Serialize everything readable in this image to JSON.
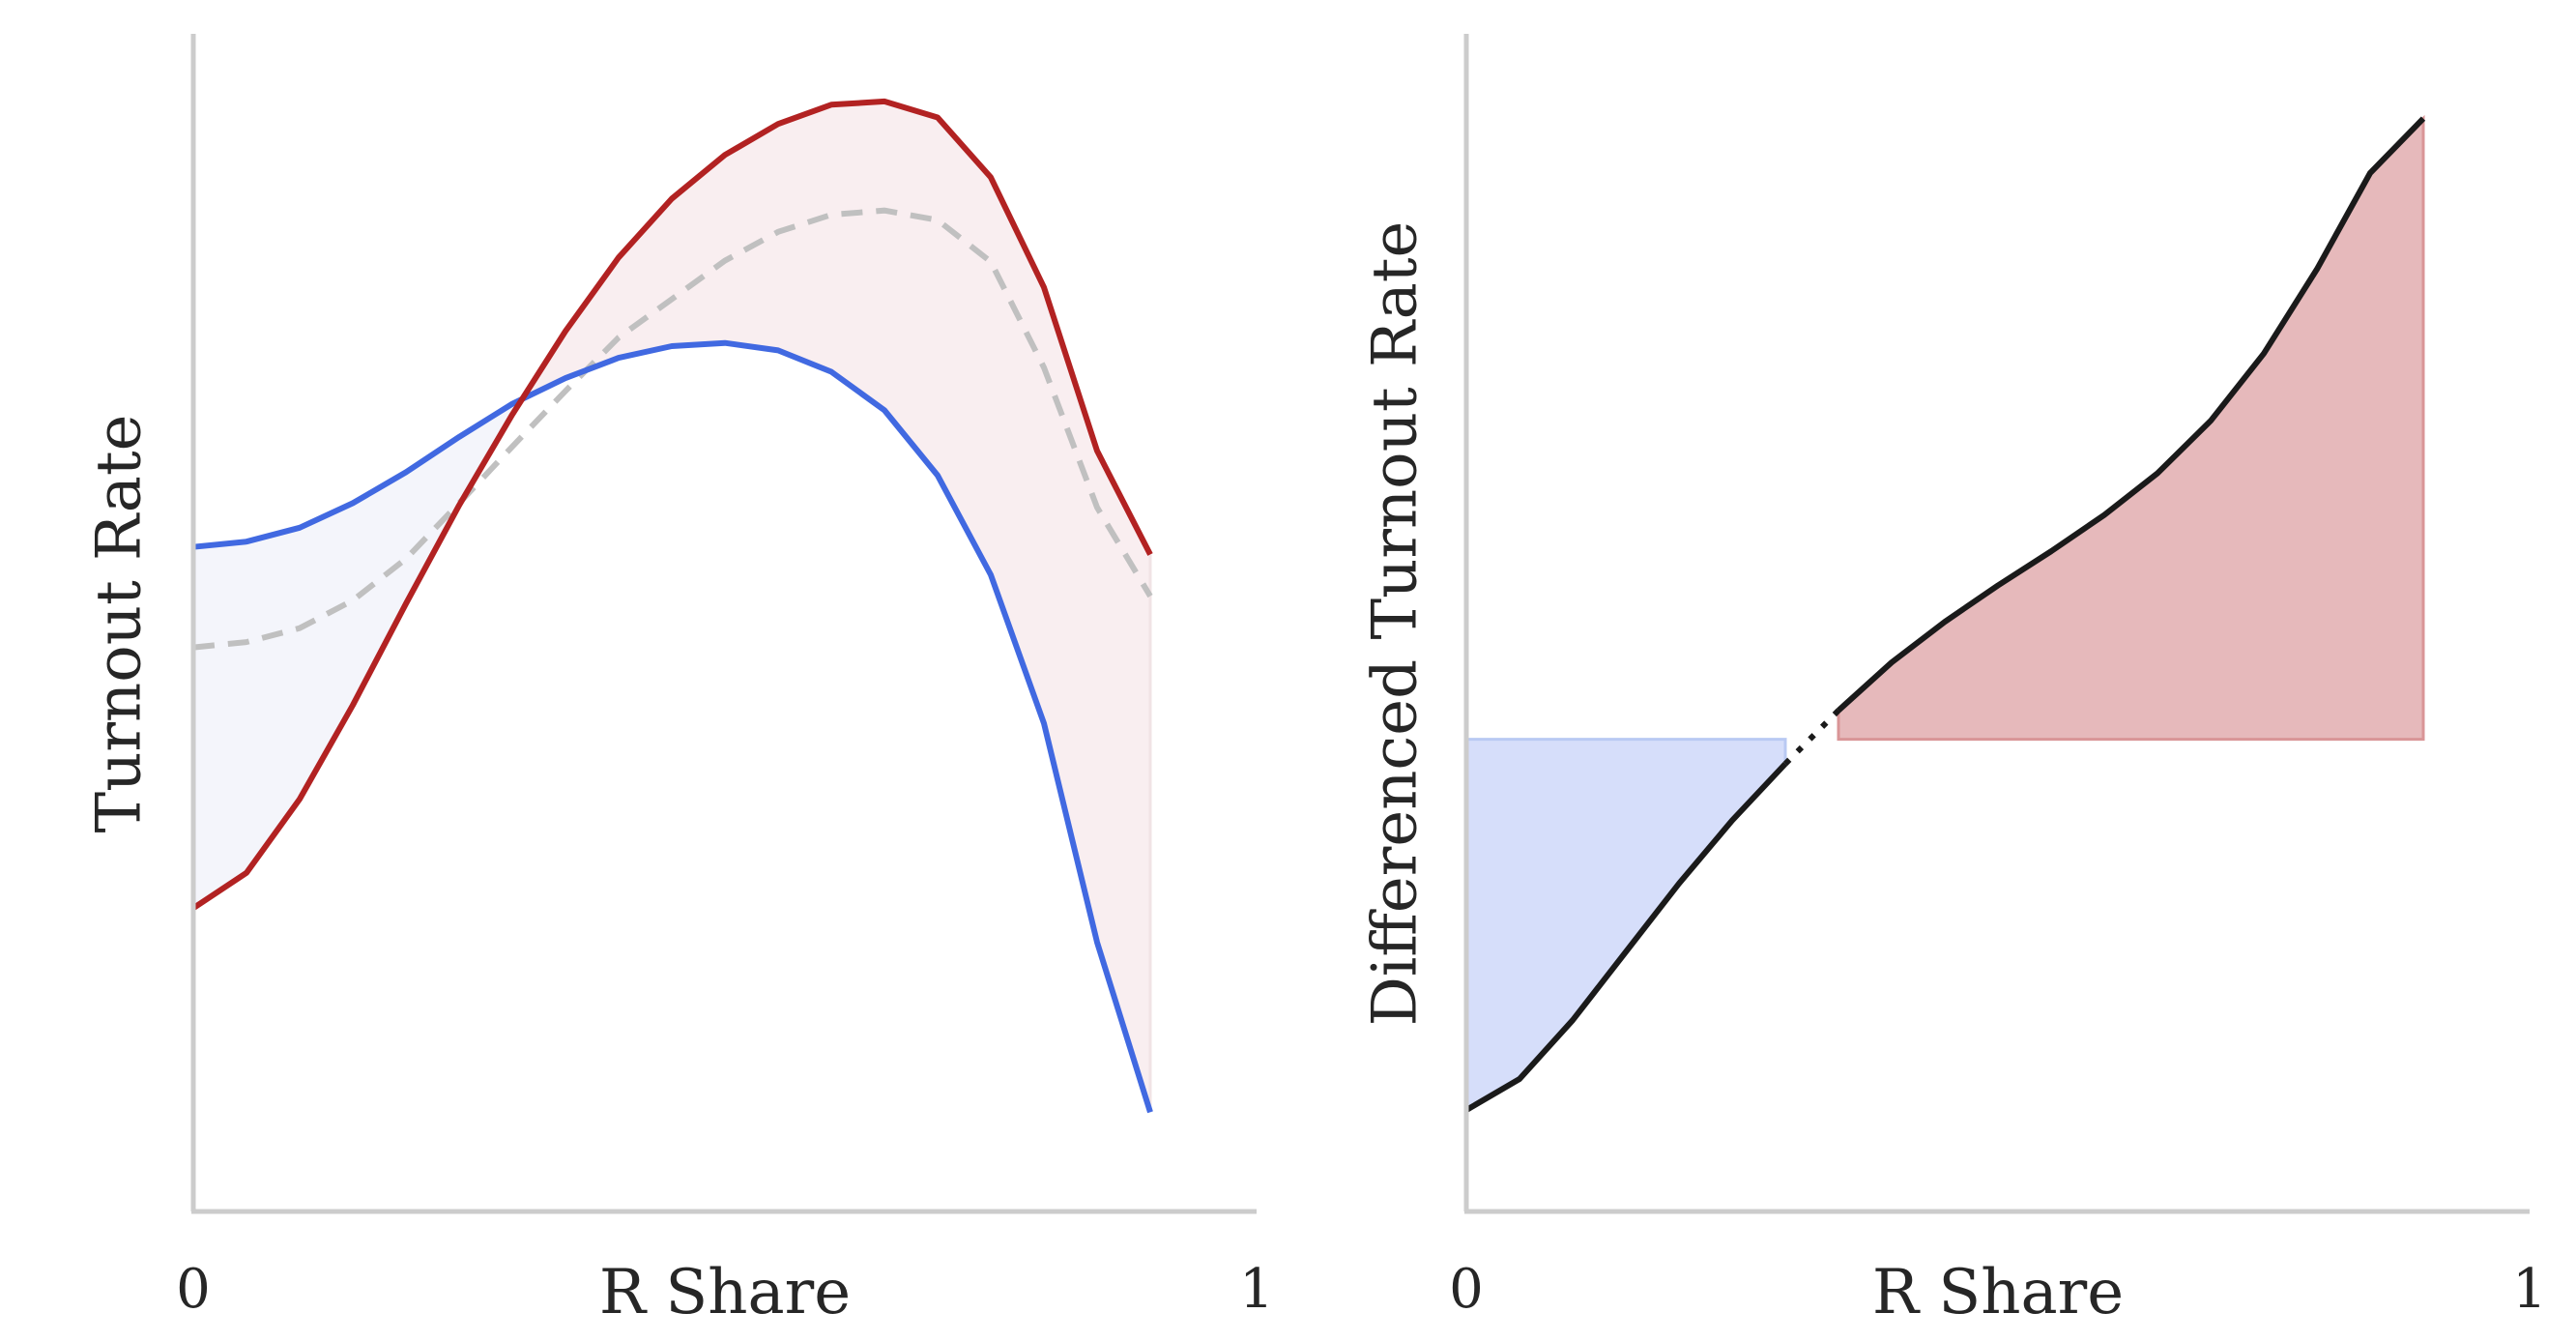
{
  "colors": {
    "r_curve": "#b22222",
    "d_curve": "#4169e1",
    "mean_curve": "#c0c0c0",
    "r_fill": "#f9eef0",
    "d_fill": "#f4f5fb",
    "diff_line": "#1a1a1a",
    "diff_neg_fill": "#d6defa",
    "diff_neg_edge": "#b9c9f3",
    "diff_pos_fill": "#e6b9bb",
    "diff_pos_edge": "#d99597",
    "axis": "#cccccc",
    "text": "#262626"
  },
  "chart_data": [
    {
      "type": "line",
      "xlabel": "R Share",
      "ylabel": "Turnout Rate",
      "xlim": [
        0,
        1
      ],
      "ylim": [
        0,
        1
      ],
      "xtick_labels": [
        "0",
        "1"
      ],
      "grid": false,
      "legend": "none",
      "x": [
        0.0,
        0.05,
        0.1,
        0.15,
        0.2,
        0.25,
        0.3,
        0.35,
        0.4,
        0.45,
        0.5,
        0.55,
        0.6,
        0.65,
        0.7,
        0.75,
        0.8,
        0.85,
        0.9
      ],
      "series": [
        {
          "color_key": "d_curve",
          "style": "solid",
          "values": [
            0.574,
            0.579,
            0.592,
            0.615,
            0.644,
            0.677,
            0.708,
            0.732,
            0.751,
            0.762,
            0.765,
            0.758,
            0.738,
            0.702,
            0.641,
            0.548,
            0.409,
            0.204,
            0.045
          ]
        },
        {
          "color_key": "r_curve",
          "style": "solid",
          "values": [
            0.236,
            0.269,
            0.338,
            0.426,
            0.521,
            0.613,
            0.698,
            0.776,
            0.845,
            0.9,
            0.941,
            0.97,
            0.988,
            0.991,
            0.976,
            0.92,
            0.817,
            0.664,
            0.567
          ]
        },
        {
          "color_key": "mean_curve",
          "style": "dashed",
          "values": [
            0.48,
            0.485,
            0.498,
            0.524,
            0.563,
            0.615,
            0.668,
            0.72,
            0.77,
            0.806,
            0.842,
            0.869,
            0.885,
            0.889,
            0.88,
            0.841,
            0.742,
            0.611,
            0.528
          ]
        }
      ]
    },
    {
      "type": "line",
      "xlabel": "R Share",
      "ylabel": "Differenced Turnout Rate",
      "xlim": [
        0,
        1
      ],
      "ylim": [
        0,
        1
      ],
      "xtick_labels": [
        "0",
        "1"
      ],
      "grid": false,
      "legend": "none",
      "baseline": 0.394,
      "x": [
        0.0,
        0.05,
        0.1,
        0.15,
        0.2,
        0.25,
        0.3,
        0.35,
        0.4,
        0.45,
        0.5,
        0.55,
        0.6,
        0.65,
        0.7,
        0.75,
        0.8,
        0.85,
        0.9
      ],
      "values": [
        0.047,
        0.076,
        0.131,
        0.195,
        0.259,
        0.318,
        0.371,
        0.421,
        0.466,
        0.504,
        0.538,
        0.57,
        0.604,
        0.643,
        0.692,
        0.755,
        0.834,
        0.924,
        0.975
      ],
      "dotted_gap": [
        0.3,
        0.35
      ]
    }
  ]
}
